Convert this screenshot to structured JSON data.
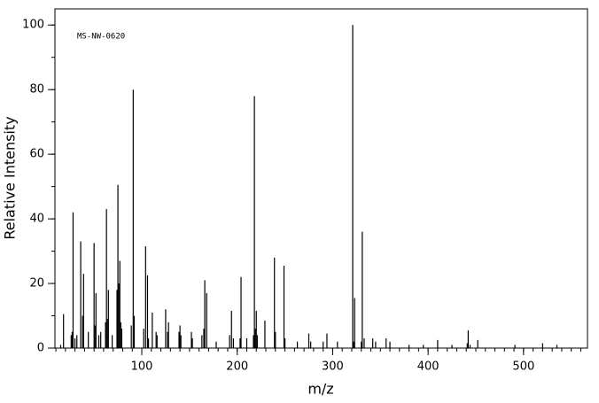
{
  "chart_data": {
    "type": "stick",
    "annotation": "MS-NW-0620",
    "xlabel": "m/z",
    "ylabel": "Relative Intensity",
    "color": "#000000",
    "xlim": [
      9,
      567
    ],
    "ylim": [
      0,
      105
    ],
    "xticks": [
      100,
      200,
      300,
      400,
      500
    ],
    "yticks": [
      0,
      20,
      40,
      60,
      80,
      100
    ],
    "x_minor_step": 10,
    "y_minor_step": 10,
    "x": [
      15,
      18,
      26,
      27,
      28,
      30,
      32,
      36,
      38,
      39,
      44,
      50,
      51,
      52,
      55,
      57,
      62,
      63,
      64,
      65,
      69,
      74,
      75,
      76,
      77,
      78,
      79,
      89,
      91,
      92,
      102,
      104,
      106,
      107,
      111,
      115,
      116,
      125,
      127,
      128,
      139,
      140,
      141,
      152,
      153,
      163,
      165,
      166,
      168,
      178,
      192,
      194,
      196,
      203,
      204,
      210,
      217,
      218,
      219,
      220,
      221,
      229,
      239,
      240,
      249,
      250,
      263,
      275,
      277,
      290,
      294,
      305,
      321,
      322,
      323,
      330,
      331,
      333,
      342,
      345,
      356,
      360,
      380,
      395,
      410,
      425,
      441,
      442,
      444,
      452,
      491,
      520,
      535
    ],
    "values": [
      1,
      10.5,
      4,
      5,
      42,
      3,
      4,
      33,
      10,
      23,
      5,
      32.5,
      7,
      17,
      4,
      5,
      8,
      43,
      9,
      18,
      4,
      18,
      50.5,
      20,
      27,
      8,
      6,
      7,
      80,
      10,
      6,
      31.5,
      22.5,
      3,
      11,
      5,
      4,
      12,
      5,
      8,
      5,
      7,
      4,
      5,
      3,
      4,
      6,
      21,
      17,
      2,
      4,
      11.5,
      3,
      3,
      22,
      3,
      4,
      78,
      6,
      11.5,
      4,
      8.5,
      28,
      5,
      25.5,
      3,
      2,
      4.5,
      2,
      2,
      4.5,
      2,
      100,
      2,
      15.5,
      2,
      36,
      3,
      3,
      2,
      3,
      2,
      1,
      1,
      2.5,
      1,
      1.5,
      5.5,
      1,
      2.5,
      1,
      1.5,
      1
    ]
  }
}
